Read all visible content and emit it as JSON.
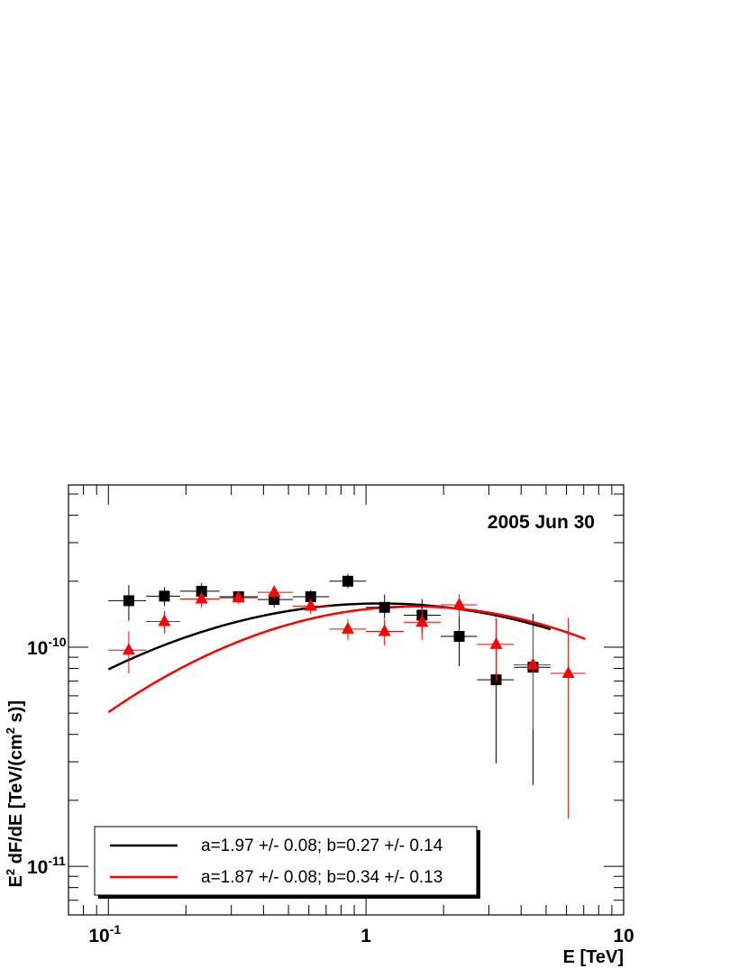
{
  "chart_data": {
    "type": "scatter",
    "title": "",
    "annotation": "2005 Jun 30",
    "xlabel": "E [TeV]",
    "ylabel_parts": [
      "E",
      "2",
      " dF/dE [TeV/(cm",
      "2",
      " s)]"
    ],
    "xscale": "log",
    "yscale": "log",
    "xlim": [
      0.07,
      10
    ],
    "ylim": [
      6e-12,
      5.5e-10
    ],
    "grid": false,
    "legend_position": "bottom-left",
    "x_ticks": [
      {
        "value": 0.1,
        "base": "10",
        "exp": "-1"
      },
      {
        "value": 1,
        "base": "1",
        "exp": ""
      },
      {
        "value": 10,
        "base": "10",
        "exp": ""
      }
    ],
    "y_ticks": [
      {
        "value": 1e-10,
        "base": "10",
        "exp": "-10"
      },
      {
        "value": 1e-11,
        "base": "10",
        "exp": "-11"
      }
    ],
    "series": [
      {
        "color": "#000000",
        "marker": "square",
        "points": [
          {
            "x": 0.12,
            "y": 1.63e-10,
            "xlo": 0.1,
            "xhi": 0.14,
            "ylo": 1.32e-10,
            "yhi": 1.92e-10
          },
          {
            "x": 0.165,
            "y": 1.71e-10,
            "xlo": 0.14,
            "xhi": 0.19,
            "ylo": 1.54e-10,
            "yhi": 1.88e-10
          },
          {
            "x": 0.23,
            "y": 1.8e-10,
            "xlo": 0.19,
            "xhi": 0.27,
            "ylo": 1.66e-10,
            "yhi": 1.96e-10
          },
          {
            "x": 0.32,
            "y": 1.7e-10,
            "xlo": 0.27,
            "xhi": 0.38,
            "ylo": 1.6e-10,
            "yhi": 1.8e-10
          },
          {
            "x": 0.44,
            "y": 1.65e-10,
            "xlo": 0.38,
            "xhi": 0.52,
            "ylo": 1.52e-10,
            "yhi": 1.8e-10
          },
          {
            "x": 0.61,
            "y": 1.7e-10,
            "xlo": 0.52,
            "xhi": 0.72,
            "ylo": 1.58e-10,
            "yhi": 1.82e-10
          },
          {
            "x": 0.85,
            "y": 2e-10,
            "xlo": 0.72,
            "xhi": 1.0,
            "ylo": 1.86e-10,
            "yhi": 2.16e-10
          },
          {
            "x": 1.18,
            "y": 1.52e-10,
            "xlo": 1.0,
            "xhi": 1.4,
            "ylo": 1.35e-10,
            "yhi": 1.74e-10
          },
          {
            "x": 1.65,
            "y": 1.4e-10,
            "xlo": 1.4,
            "xhi": 1.95,
            "ylo": 1.16e-10,
            "yhi": 1.66e-10
          },
          {
            "x": 2.3,
            "y": 1.12e-10,
            "xlo": 1.95,
            "xhi": 2.7,
            "ylo": 8.2e-11,
            "yhi": 1.4e-10
          },
          {
            "x": 3.2,
            "y": 7.1e-11,
            "xlo": 2.7,
            "xhi": 3.75,
            "ylo": 2.95e-11,
            "yhi": 1e-10
          },
          {
            "x": 4.45,
            "y": 8.1e-11,
            "xlo": 3.75,
            "xhi": 5.2,
            "ylo": 2.35e-11,
            "yhi": 1.42e-10
          }
        ]
      },
      {
        "color": "#ff0000",
        "marker": "triangle",
        "points": [
          {
            "x": 0.12,
            "y": 9.7e-11,
            "xlo": 0.1,
            "xhi": 0.14,
            "ylo": 7.6e-11,
            "yhi": 1.18e-10
          },
          {
            "x": 0.165,
            "y": 1.31e-10,
            "xlo": 0.14,
            "xhi": 0.19,
            "ylo": 1.16e-10,
            "yhi": 1.46e-10
          },
          {
            "x": 0.23,
            "y": 1.66e-10,
            "xlo": 0.19,
            "xhi": 0.27,
            "ylo": 1.51e-10,
            "yhi": 1.81e-10
          },
          {
            "x": 0.32,
            "y": 1.68e-10,
            "xlo": 0.27,
            "xhi": 0.38,
            "ylo": 1.58e-10,
            "yhi": 1.78e-10
          },
          {
            "x": 0.44,
            "y": 1.78e-10,
            "xlo": 0.38,
            "xhi": 0.52,
            "ylo": 1.67e-10,
            "yhi": 1.89e-10
          },
          {
            "x": 0.61,
            "y": 1.54e-10,
            "xlo": 0.52,
            "xhi": 0.72,
            "ylo": 1.42e-10,
            "yhi": 1.66e-10
          },
          {
            "x": 0.85,
            "y": 1.21e-10,
            "xlo": 0.72,
            "xhi": 1.0,
            "ylo": 1.08e-10,
            "yhi": 1.34e-10
          },
          {
            "x": 1.18,
            "y": 1.18e-10,
            "xlo": 1.0,
            "xhi": 1.4,
            "ylo": 1.02e-10,
            "yhi": 1.34e-10
          },
          {
            "x": 1.65,
            "y": 1.3e-10,
            "xlo": 1.4,
            "xhi": 1.95,
            "ylo": 1.08e-10,
            "yhi": 1.52e-10
          },
          {
            "x": 2.3,
            "y": 1.56e-10,
            "xlo": 1.95,
            "xhi": 2.7,
            "ylo": 1.38e-10,
            "yhi": 1.74e-10
          },
          {
            "x": 3.2,
            "y": 1.03e-10,
            "xlo": 2.7,
            "xhi": 3.75,
            "ylo": 7e-11,
            "yhi": 1.36e-10
          },
          {
            "x": 4.45,
            "y": 8.3e-11,
            "xlo": 3.75,
            "xhi": 5.2,
            "ylo": 4.2e-11,
            "yhi": 1.24e-10
          },
          {
            "x": 6.1,
            "y": 7.6e-11,
            "xlo": 5.2,
            "xhi": 7.1,
            "ylo": 1.65e-11,
            "yhi": 1.36e-10
          }
        ]
      }
    ],
    "fits": [
      {
        "color": "#000000",
        "label": "a=1.97 +/- 0.08;  b=0.27 +/- 0.14",
        "a": 1.97,
        "b": 0.27,
        "x_range": [
          0.1,
          5.2
        ],
        "norm_at_1": 1.58e-10
      },
      {
        "color": "#ff0000",
        "label": "a=1.87 +/- 0.08;  b=0.34 +/- 0.13",
        "a": 1.87,
        "b": 0.34,
        "x_range": [
          0.1,
          7.1
        ],
        "norm_at_1": 1.49e-10
      }
    ]
  }
}
